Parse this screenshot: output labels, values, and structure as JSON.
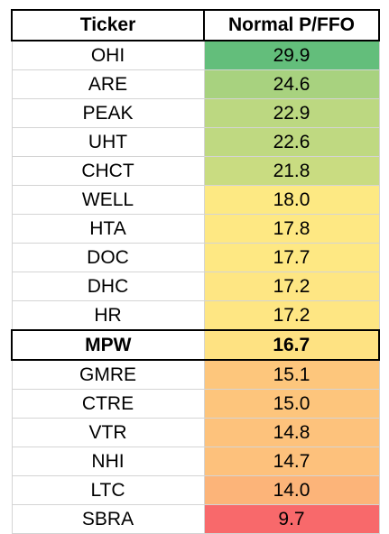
{
  "table": {
    "headers": [
      "Ticker",
      "Normal P/FFO"
    ],
    "highlight_ticker": "MPW",
    "rows": [
      {
        "ticker": "OHI",
        "value": "29.9",
        "color": "#63be7b"
      },
      {
        "ticker": "ARE",
        "value": "24.6",
        "color": "#a8d27f"
      },
      {
        "ticker": "PEAK",
        "value": "22.9",
        "color": "#bcd881"
      },
      {
        "ticker": "UHT",
        "value": "22.6",
        "color": "#bfd981"
      },
      {
        "ticker": "CHCT",
        "value": "21.8",
        "color": "#c9dc81"
      },
      {
        "ticker": "WELL",
        "value": "18.0",
        "color": "#fde983"
      },
      {
        "ticker": "HTA",
        "value": "17.8",
        "color": "#fee883"
      },
      {
        "ticker": "DOC",
        "value": "17.7",
        "color": "#fee883"
      },
      {
        "ticker": "DHC",
        "value": "17.2",
        "color": "#fee683"
      },
      {
        "ticker": "HR",
        "value": "17.2",
        "color": "#fee683"
      },
      {
        "ticker": "MPW",
        "value": "16.7",
        "color": "#fee282"
      },
      {
        "ticker": "GMRE",
        "value": "15.1",
        "color": "#fdc67c"
      },
      {
        "ticker": "CTRE",
        "value": "15.0",
        "color": "#fdc57c"
      },
      {
        "ticker": "VTR",
        "value": "14.8",
        "color": "#fdc27c"
      },
      {
        "ticker": "NHI",
        "value": "14.7",
        "color": "#fdc17c"
      },
      {
        "ticker": "LTC",
        "value": "14.0",
        "color": "#fcb479"
      },
      {
        "ticker": "SBRA",
        "value": "9.7",
        "color": "#f8696b"
      }
    ]
  }
}
